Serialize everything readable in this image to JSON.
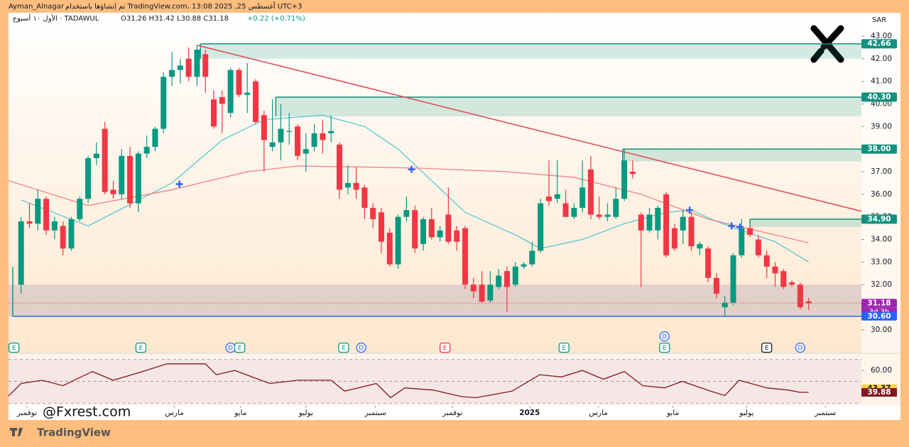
{
  "chart_data": {
    "type": "candlestick",
    "author": "Ayman_Alnagar",
    "credit": "تم إنشاؤها باستخدام TradingView.com، 13:08 2025 ,25 أغسطس UTC+3",
    "symbol": "الأول ١٠ أسبوع · TADAWUL",
    "ohlc": "O31.26  H31.42  L30.88  C31.18",
    "change": "+0.22 (+0.71%)",
    "currency": "SAR",
    "watermark": "@Fxrest.com",
    "brand": "TradingView",
    "xlim": [
      -1.5,
      100.3
    ],
    "ylim": [
      29.5,
      43.5
    ],
    "yticks": [
      {
        "value": 30,
        "label": "30.00"
      },
      {
        "value": 31,
        "label": "31.00"
      },
      {
        "value": 32,
        "label": "32.00"
      },
      {
        "value": 33,
        "label": "33.00"
      },
      {
        "value": 34,
        "label": "34.00"
      },
      {
        "value": 35,
        "label": "35.00"
      },
      {
        "value": 36,
        "label": "36.00"
      },
      {
        "value": 37,
        "label": "37.00"
      },
      {
        "value": 38,
        "label": "38.00"
      },
      {
        "value": 39,
        "label": "39.00"
      },
      {
        "value": 40,
        "label": "40.00"
      },
      {
        "value": 41,
        "label": "41.00"
      },
      {
        "value": 42,
        "label": "42.00"
      },
      {
        "value": 43,
        "label": "43.00"
      }
    ],
    "xticks": [
      {
        "value": 0.7,
        "label": "نوفمبر"
      },
      {
        "value": 18.3,
        "label": "مارس"
      },
      {
        "value": 26.2,
        "label": "مايو"
      },
      {
        "value": 34,
        "label": "يوليو"
      },
      {
        "value": 42.3,
        "label": "سبتمبر"
      },
      {
        "value": 51.5,
        "label": "نوفمبر"
      },
      {
        "value": 60.7,
        "label": "2025"
      },
      {
        "value": 68.9,
        "label": "مارس"
      },
      {
        "value": 77.8,
        "label": "مايو"
      },
      {
        "value": 86.6,
        "label": "يوليو"
      },
      {
        "value": 96,
        "label": "سبتمبر"
      }
    ],
    "up_color": "#089981",
    "down_color": "#f23645",
    "candles": [
      [
        32.0,
        35.0,
        31.6,
        34.8
      ],
      [
        34.8,
        35.6,
        34.5,
        34.7
      ],
      [
        34.7,
        36.2,
        34.4,
        35.8
      ],
      [
        35.8,
        35.9,
        34.2,
        34.4
      ],
      [
        34.4,
        35.0,
        34.0,
        34.8
      ],
      [
        34.6,
        34.8,
        33.3,
        33.6
      ],
      [
        33.6,
        35.0,
        33.5,
        34.9
      ],
      [
        34.9,
        35.9,
        34.8,
        35.8
      ],
      [
        35.8,
        37.7,
        35.6,
        37.6
      ],
      [
        37.6,
        38.3,
        37.3,
        37.8
      ],
      [
        38.9,
        39.2,
        36.0,
        36.1
      ],
      [
        36.2,
        36.6,
        35.8,
        36.0
      ],
      [
        36.0,
        38.0,
        35.8,
        37.7
      ],
      [
        37.7,
        38.1,
        35.4,
        35.6
      ],
      [
        35.6,
        37.9,
        35.2,
        37.8
      ],
      [
        37.8,
        38.6,
        37.6,
        38.1
      ],
      [
        38.1,
        39.0,
        37.9,
        38.9
      ],
      [
        38.9,
        41.4,
        38.7,
        41.2
      ],
      [
        41.2,
        42.3,
        40.8,
        41.5
      ],
      [
        41.5,
        42.0,
        40.9,
        41.7
      ],
      [
        42.0,
        42.5,
        41.0,
        41.2
      ],
      [
        41.2,
        42.6,
        40.8,
        42.4
      ],
      [
        42.2,
        42.4,
        40.5,
        41.2
      ],
      [
        40.2,
        40.6,
        38.9,
        39.0
      ],
      [
        40.3,
        40.6,
        38.7,
        40.0
      ],
      [
        39.6,
        41.6,
        39.4,
        41.5
      ],
      [
        41.5,
        41.6,
        40.3,
        40.4
      ],
      [
        40.4,
        41.8,
        39.6,
        40.5
      ],
      [
        41.0,
        41.1,
        39.1,
        39.2
      ],
      [
        39.5,
        39.7,
        37.0,
        38.4
      ],
      [
        38.1,
        40.2,
        37.9,
        38.3
      ],
      [
        38.3,
        40.0,
        37.5,
        38.9
      ],
      [
        38.8,
        39.6,
        38.2,
        38.8
      ],
      [
        39.0,
        39.1,
        37.5,
        37.7
      ],
      [
        37.8,
        38.7,
        37.0,
        38.0
      ],
      [
        38.1,
        39.1,
        37.9,
        38.7
      ],
      [
        38.7,
        39.3,
        37.8,
        38.4
      ],
      [
        38.7,
        39.5,
        38.3,
        38.8
      ],
      [
        38.2,
        38.3,
        35.8,
        36.2
      ],
      [
        36.3,
        37.3,
        36.0,
        36.5
      ],
      [
        36.5,
        37.2,
        35.8,
        36.2
      ],
      [
        36.3,
        36.4,
        34.9,
        35.4
      ],
      [
        35.4,
        35.6,
        34.5,
        34.9
      ],
      [
        35.2,
        35.4,
        33.4,
        33.9
      ],
      [
        34.3,
        34.5,
        32.8,
        32.9
      ],
      [
        32.9,
        35.1,
        32.7,
        35.0
      ],
      [
        35.0,
        35.9,
        34.8,
        35.3
      ],
      [
        35.3,
        35.5,
        33.4,
        33.6
      ],
      [
        33.8,
        35.0,
        33.5,
        34.9
      ],
      [
        34.9,
        35.4,
        34.0,
        34.1
      ],
      [
        34.1,
        34.6,
        33.9,
        34.4
      ],
      [
        35.1,
        36.3,
        33.8,
        33.9
      ],
      [
        34.4,
        34.6,
        33.5,
        33.9
      ],
      [
        34.5,
        34.6,
        31.8,
        32.0
      ],
      [
        32.0,
        32.3,
        31.4,
        31.7
      ],
      [
        32.0,
        32.6,
        31.2,
        31.25
      ],
      [
        31.3,
        32.6,
        31.2,
        32.0
      ],
      [
        31.9,
        32.7,
        31.8,
        32.4
      ],
      [
        32.6,
        32.8,
        30.8,
        31.9
      ],
      [
        32.0,
        33.0,
        31.9,
        32.8
      ],
      [
        32.8,
        33.0,
        32.7,
        32.9
      ],
      [
        32.9,
        33.9,
        32.8,
        33.5
      ],
      [
        33.5,
        35.8,
        33.4,
        35.6
      ],
      [
        35.9,
        37.5,
        35.5,
        35.7
      ],
      [
        35.8,
        37.5,
        35.6,
        36.0
      ],
      [
        35.6,
        36.2,
        35.0,
        35.0
      ],
      [
        35.0,
        35.6,
        34.9,
        35.4
      ],
      [
        35.4,
        37.5,
        35.2,
        36.3
      ],
      [
        37.1,
        37.7,
        34.9,
        35.1
      ],
      [
        35.1,
        35.9,
        34.9,
        35.0
      ],
      [
        35.0,
        35.6,
        34.8,
        35.1
      ],
      [
        35.0,
        36.3,
        34.9,
        35.8
      ],
      [
        35.8,
        38.0,
        35.7,
        37.5
      ],
      [
        37.0,
        37.5,
        36.7,
        36.9
      ],
      [
        35.1,
        35.2,
        31.9,
        34.4
      ],
      [
        34.4,
        35.4,
        34.3,
        35.1
      ],
      [
        34.4,
        35.5,
        34.0,
        35.4
      ],
      [
        36.0,
        36.1,
        33.2,
        33.3
      ],
      [
        34.5,
        34.7,
        33.5,
        33.6
      ],
      [
        34.4,
        35.3,
        33.8,
        35.0
      ],
      [
        35.0,
        35.2,
        33.5,
        33.7
      ],
      [
        33.6,
        33.9,
        33.3,
        33.8
      ],
      [
        33.6,
        33.7,
        32.1,
        32.3
      ],
      [
        32.3,
        32.5,
        31.4,
        31.6
      ],
      [
        31.0,
        31.5,
        30.6,
        31.2
      ],
      [
        31.2,
        33.4,
        31.1,
        33.3
      ],
      [
        33.3,
        34.9,
        33.2,
        34.5
      ],
      [
        34.5,
        34.6,
        34.1,
        34.2
      ],
      [
        34.0,
        34.2,
        33.2,
        33.3
      ],
      [
        33.3,
        33.5,
        32.3,
        32.8
      ],
      [
        32.8,
        33.0,
        31.9,
        32.5
      ],
      [
        32.6,
        32.7,
        31.8,
        31.9
      ],
      [
        32.1,
        32.2,
        31.9,
        32.0
      ],
      [
        32.0,
        32.1,
        30.9,
        31.0
      ],
      [
        31.26,
        31.42,
        30.88,
        31.18
      ]
    ],
    "moving_averages": [
      {
        "color": "#4ec3d4",
        "x": [
          0,
          8,
          18,
          24,
          29,
          36,
          41,
          45,
          49,
          53,
          59,
          62,
          67,
          72,
          77,
          80,
          83,
          86,
          90,
          94
        ],
        "values": [
          35.75,
          34.6,
          36.5,
          38.4,
          39.3,
          39.5,
          39.0,
          38.0,
          36.6,
          35.2,
          34.2,
          33.6,
          34.0,
          34.7,
          35.2,
          35.3,
          34.8,
          34.4,
          33.9,
          33.0
        ]
      },
      {
        "color": "#ef7a80",
        "x": [
          -1.5,
          8,
          18,
          27,
          33,
          42,
          48,
          58,
          66,
          74,
          82,
          94
        ],
        "values": [
          36.6,
          35.5,
          36.2,
          37.0,
          37.25,
          37.2,
          37.15,
          37.0,
          36.75,
          36.0,
          34.9,
          33.85
        ]
      }
    ],
    "ma_crosses": [
      {
        "x": 18.9,
        "value": 36.45
      },
      {
        "x": 46.6,
        "value": 37.1
      },
      {
        "x": 79.8,
        "value": 35.3
      },
      {
        "x": 84.8,
        "value": 34.6
      },
      {
        "x": 85.8,
        "value": 34.55
      }
    ],
    "trendline": {
      "color": "#e0505f",
      "x": [
        21,
        100.3
      ],
      "values": [
        42.6,
        35.25
      ]
    },
    "zones": [
      {
        "top": 42.66,
        "bottom": 42.0,
        "start": 21.4
      },
      {
        "top": {
          "value": 40.3,
          "label": "40.30"
        },
        "bottom": 39.45,
        "start": 30.4
      },
      {
        "top": {
          "value": 38,
          "label": "38.00"
        },
        "bottom": 37.45,
        "start": 71.8
      },
      {
        "top": {
          "value": 34.9,
          "label": "34.90"
        },
        "bottom": 34.55,
        "start": 87
      }
    ],
    "range_box": [
      30.6,
      32.0
    ],
    "support": {
      "value": 30.6,
      "label": "30.60"
    },
    "last_price": 31.18,
    "countdown": "3d 3h",
    "events": [
      {
        "label": "E",
        "x": -0.85,
        "color": "#089981"
      },
      {
        "label": "E",
        "x": 14.3,
        "color": "#089981"
      },
      {
        "label": "D",
        "x": 25.0,
        "color": "#2962ff"
      },
      {
        "label": "E",
        "x": 26.1,
        "color": "#089981"
      },
      {
        "label": "E",
        "x": 38.5,
        "color": "#089981"
      },
      {
        "label": "D",
        "x": 40.6,
        "color": "#2962ff"
      },
      {
        "label": "E",
        "x": 50.6,
        "color": "#f23645"
      },
      {
        "label": "E",
        "x": 64.8,
        "color": "#089981"
      },
      {
        "label": "E",
        "x": 76.8,
        "color": "#089981"
      },
      {
        "label": "D",
        "x": 76.8,
        "color": "#2962ff"
      },
      {
        "label": "E",
        "x": 89.0,
        "color": "#131722"
      },
      {
        "label": "D",
        "x": 93.0,
        "color": "#2962ff"
      }
    ],
    "rsi": {
      "color": "#801922",
      "ylim": [
        26,
        74
      ],
      "yticks": [
        {
          "value": 60,
          "label": "60.00"
        }
      ],
      "bands": [
        30,
        50,
        70
      ],
      "x": [
        -1.5,
        0,
        2.5,
        5,
        8.5,
        11,
        14.5,
        17.4,
        22,
        23.3,
        25.5,
        29.7,
        33,
        37,
        38.6,
        42.4,
        44.1,
        45.8,
        49.2,
        52.6,
        54.3,
        58.6,
        61.9,
        64.5,
        67,
        69.5,
        72,
        74.2,
        76.8,
        78.9,
        82.3,
        84,
        85.7,
        89,
        91.6,
        92.9,
        94
      ],
      "values": [
        36.6,
        48,
        51,
        46,
        59,
        51,
        59,
        66,
        66,
        56,
        60,
        48,
        51,
        51,
        41,
        48,
        35,
        44,
        42,
        36,
        35,
        41,
        56,
        54,
        60,
        52,
        59,
        46,
        44,
        50,
        41,
        37,
        51,
        44,
        42,
        40,
        39.88
      ],
      "ma_value": 43.37
    }
  }
}
